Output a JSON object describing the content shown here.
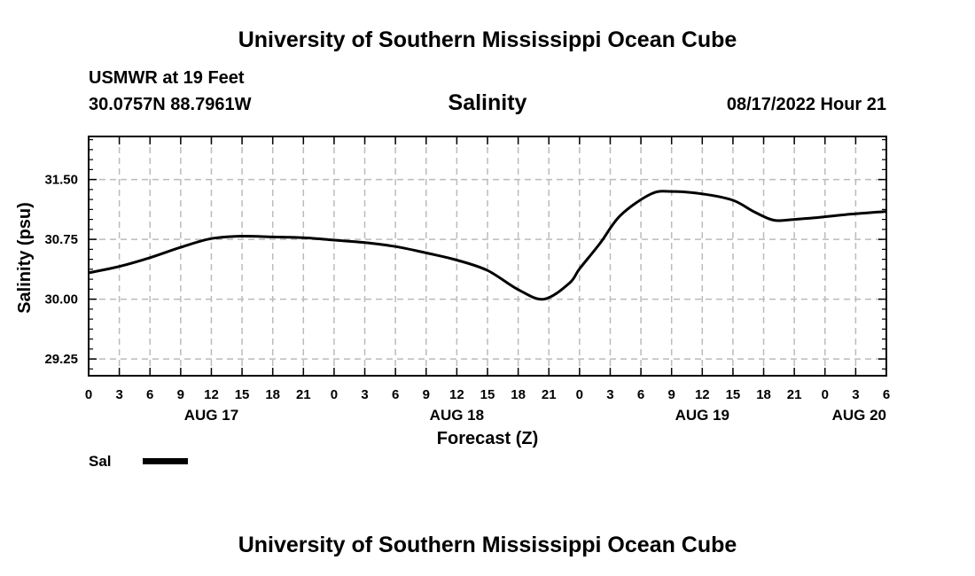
{
  "header": {
    "title": "University of Southern Mississippi Ocean Cube",
    "station_name": "USMWR at 19 Feet",
    "station_coords": "30.0757N  88.7961W",
    "run_time": "08/17/2022 Hour 21"
  },
  "footer": {
    "title": "University of Southern Mississippi Ocean Cube"
  },
  "colors": {
    "line": "#000000",
    "grid": "#bbbbbb",
    "frame": "#000000",
    "background": "#ffffff"
  },
  "chart_data": {
    "type": "line",
    "title": "Salinity",
    "xlabel": "Forecast (Z)",
    "ylabel": "Salinity (psu)",
    "xlim": [
      0,
      78
    ],
    "ylim": [
      29.04,
      32.04
    ],
    "grid": true,
    "yticks": [
      29.25,
      30.0,
      30.75,
      31.5
    ],
    "ytick_labels": [
      "29.25",
      "30.00",
      "30.75",
      "31.50"
    ],
    "yminor_step": 0.125,
    "xticks": [
      0,
      3,
      6,
      9,
      12,
      15,
      18,
      21,
      24,
      27,
      30,
      33,
      36,
      39,
      42,
      45,
      48,
      51,
      54,
      57,
      60,
      63,
      66,
      69,
      72,
      75,
      78
    ],
    "xtick_labels": [
      "0",
      "3",
      "6",
      "9",
      "12",
      "15",
      "18",
      "21",
      "0",
      "3",
      "6",
      "9",
      "12",
      "15",
      "18",
      "21",
      "0",
      "3",
      "6",
      "9",
      "12",
      "15",
      "18",
      "21",
      "0",
      "3",
      "6"
    ],
    "day_labels": [
      {
        "hour": 12,
        "label": "AUG 17",
        "align": "middle"
      },
      {
        "hour": 36,
        "label": "AUG 18",
        "align": "middle"
      },
      {
        "hour": 60,
        "label": "AUG 19",
        "align": "middle"
      },
      {
        "hour": 78,
        "label": "AUG 20",
        "align": "end"
      }
    ],
    "legend": {
      "position": "bottom-left",
      "label": "Sal"
    },
    "series": [
      {
        "name": "Sal",
        "x": [
          0,
          3,
          6,
          9,
          12,
          15,
          18,
          21,
          24,
          27,
          30,
          33,
          36,
          39,
          42,
          44.5,
          47,
          48,
          50,
          52,
          55,
          57,
          60,
          63,
          65,
          67,
          69,
          71,
          74,
          78
        ],
        "y": [
          30.33,
          30.41,
          30.52,
          30.65,
          30.76,
          30.79,
          30.78,
          30.77,
          30.74,
          30.71,
          30.66,
          30.58,
          30.49,
          30.36,
          30.12,
          30.0,
          30.2,
          30.38,
          30.7,
          31.05,
          31.32,
          31.35,
          31.32,
          31.24,
          31.1,
          30.99,
          31.0,
          31.02,
          31.06,
          31.1
        ]
      }
    ]
  }
}
